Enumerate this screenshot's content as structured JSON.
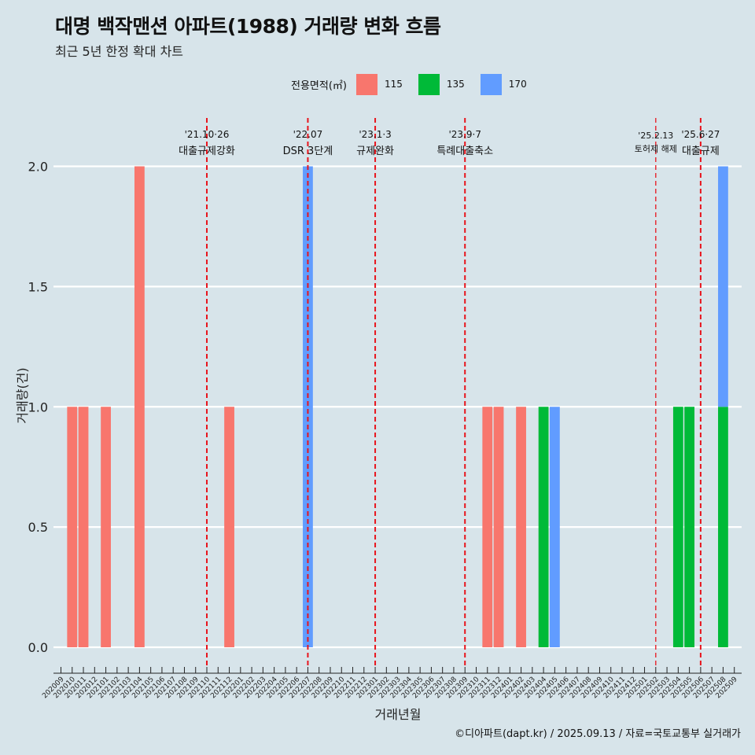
{
  "header": {
    "title": "대명 백작맨션 아파트(1988) 거래량 변화 흐름",
    "subtitle": "최근 5년 한정 확대 차트"
  },
  "legend": {
    "title": "전용면적(㎡)",
    "items": [
      {
        "label": "115",
        "color": "#f8766d"
      },
      {
        "label": "135",
        "color": "#00ba38"
      },
      {
        "label": "170",
        "color": "#619cff"
      }
    ]
  },
  "caption": "©디아파트(dapt.kr) / 2025.09.13 / 자료=국토교통부 실거래가",
  "chart_data": {
    "type": "bar",
    "xlabel": "거래년월",
    "ylabel": "거래량(건)",
    "ylim": [
      0,
      2
    ],
    "yticks": [
      "0.0",
      "0.5",
      "1.0",
      "1.5",
      "2.0"
    ],
    "grid": true,
    "legend_position": "top",
    "categories": [
      "202009",
      "202010",
      "202011",
      "202012",
      "202101",
      "202102",
      "202103",
      "202104",
      "202105",
      "202106",
      "202107",
      "202108",
      "202109",
      "202110",
      "202111",
      "202112",
      "202201",
      "202202",
      "202203",
      "202204",
      "202205",
      "202206",
      "202207",
      "202208",
      "202209",
      "202210",
      "202211",
      "202212",
      "202301",
      "202302",
      "202303",
      "202304",
      "202305",
      "202306",
      "202307",
      "202308",
      "202309",
      "202310",
      "202311",
      "202312",
      "202401",
      "202402",
      "202403",
      "202404",
      "202405",
      "202406",
      "202407",
      "202408",
      "202409",
      "202410",
      "202411",
      "202412",
      "202501",
      "202502",
      "202503",
      "202504",
      "202505",
      "202506",
      "202507",
      "202508",
      "202509"
    ],
    "series": [
      {
        "name": "115",
        "color": "#f8766d",
        "points": [
          {
            "x": "202010",
            "y": 1
          },
          {
            "x": "202011",
            "y": 1
          },
          {
            "x": "202101",
            "y": 1
          },
          {
            "x": "202104",
            "y": 2
          },
          {
            "x": "202112",
            "y": 1
          },
          {
            "x": "202311",
            "y": 1
          },
          {
            "x": "202312",
            "y": 1
          },
          {
            "x": "202402",
            "y": 1
          }
        ]
      },
      {
        "name": "135",
        "color": "#00ba38",
        "points": [
          {
            "x": "202404",
            "y": 1
          },
          {
            "x": "202504",
            "y": 1
          },
          {
            "x": "202505",
            "y": 1
          },
          {
            "x": "202508",
            "y": 1
          }
        ]
      },
      {
        "name": "170",
        "color": "#619cff",
        "points": [
          {
            "x": "202207",
            "y": 2
          },
          {
            "x": "202405",
            "y": 1
          },
          {
            "x": "202508",
            "y": 1
          }
        ]
      }
    ],
    "events": [
      {
        "x": "202110",
        "date": "'21.10·26",
        "desc": "대출규제강화",
        "small": false
      },
      {
        "x": "202207",
        "date": "'22.07",
        "desc": "DSR 3단계",
        "small": false
      },
      {
        "x": "202301",
        "date": "'23.1·3",
        "desc": "규제완화",
        "small": false
      },
      {
        "x": "202309",
        "date": "'23.9·7",
        "desc": "특례대출축소",
        "small": false
      },
      {
        "x": "202502",
        "date": "'25.2.13",
        "desc": "토허제 해제",
        "small": true
      },
      {
        "x": "202506",
        "date": "'25.6·27",
        "desc": "대출규제",
        "small": false
      }
    ]
  }
}
